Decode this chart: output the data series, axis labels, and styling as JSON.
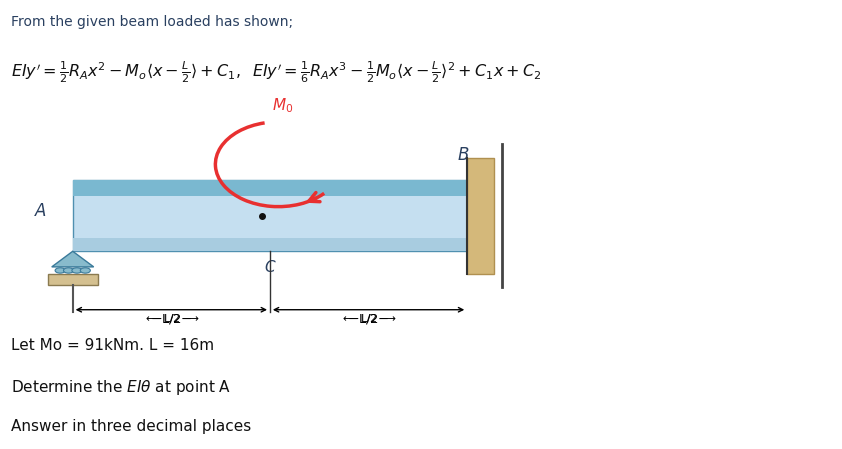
{
  "title_text": "From the given beam loaded has shown;",
  "bg_color": "#ffffff",
  "beam_color_main": "#c5dff0",
  "beam_color_top_stripe": "#7ab8d0",
  "beam_color_bottom_stripe": "#a8cce0",
  "beam_edge_color": "#5090b0",
  "wall_color": "#d4b87a",
  "wall_edge_color": "#b09050",
  "support_color": "#88bbcc",
  "support_base_color": "#d4c090",
  "arrow_color": "#e83030",
  "text_color_dark": "#2a4060",
  "text_color_black": "#111111",
  "line_color": "#333333",
  "bx0": 0.085,
  "bx1": 0.555,
  "by0": 0.44,
  "by1": 0.6,
  "given_text": "Let Mo = 91kNm. L = 16m",
  "answer_text": "Answer in three decimal places"
}
